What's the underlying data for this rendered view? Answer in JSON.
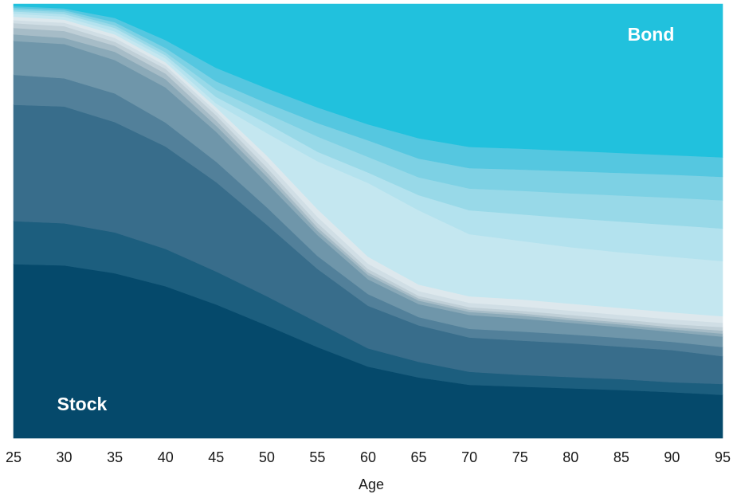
{
  "chart_data": {
    "type": "area",
    "stacked": true,
    "normalized": true,
    "title": "",
    "xlabel": "Age",
    "ylabel": "",
    "x": [
      25,
      30,
      35,
      40,
      45,
      50,
      55,
      60,
      65,
      70,
      75,
      80,
      85,
      90,
      95
    ],
    "xlim": [
      25,
      95
    ],
    "ylim": [
      0,
      1
    ],
    "grid": false,
    "legend": "none",
    "boundaries": [
      [
        0.401,
        0.398,
        0.38,
        0.35,
        0.308,
        0.26,
        0.21,
        0.165,
        0.14,
        0.123,
        0.119,
        0.115,
        0.111,
        0.106,
        0.1
      ],
      [
        0.5,
        0.495,
        0.474,
        0.436,
        0.384,
        0.327,
        0.267,
        0.207,
        0.176,
        0.153,
        0.146,
        0.141,
        0.136,
        0.129,
        0.125
      ],
      [
        0.768,
        0.764,
        0.728,
        0.672,
        0.59,
        0.492,
        0.39,
        0.305,
        0.26,
        0.232,
        0.225,
        0.219,
        0.211,
        0.203,
        0.189
      ],
      [
        0.837,
        0.829,
        0.794,
        0.727,
        0.637,
        0.532,
        0.42,
        0.332,
        0.279,
        0.252,
        0.246,
        0.239,
        0.231,
        0.222,
        0.21
      ],
      [
        0.915,
        0.908,
        0.871,
        0.808,
        0.706,
        0.588,
        0.468,
        0.366,
        0.309,
        0.284,
        0.276,
        0.266,
        0.256,
        0.245,
        0.234
      ],
      [
        0.93,
        0.922,
        0.89,
        0.827,
        0.72,
        0.603,
        0.478,
        0.376,
        0.317,
        0.291,
        0.283,
        0.272,
        0.262,
        0.251,
        0.241
      ],
      [
        0.945,
        0.938,
        0.904,
        0.84,
        0.732,
        0.613,
        0.486,
        0.382,
        0.322,
        0.296,
        0.288,
        0.277,
        0.267,
        0.256,
        0.248
      ],
      [
        0.956,
        0.949,
        0.913,
        0.851,
        0.744,
        0.624,
        0.496,
        0.39,
        0.328,
        0.302,
        0.294,
        0.284,
        0.274,
        0.263,
        0.256
      ],
      [
        0.963,
        0.957,
        0.922,
        0.859,
        0.753,
        0.637,
        0.51,
        0.402,
        0.339,
        0.312,
        0.304,
        0.294,
        0.284,
        0.274,
        0.266
      ],
      [
        0.971,
        0.964,
        0.93,
        0.866,
        0.762,
        0.651,
        0.528,
        0.418,
        0.354,
        0.327,
        0.32,
        0.31,
        0.3,
        0.29,
        0.281
      ],
      [
        0.978,
        0.971,
        0.937,
        0.875,
        0.771,
        0.703,
        0.638,
        0.588,
        0.525,
        0.47,
        0.455,
        0.44,
        0.428,
        0.418,
        0.408
      ],
      [
        0.983,
        0.977,
        0.945,
        0.882,
        0.786,
        0.725,
        0.66,
        0.612,
        0.56,
        0.525,
        0.516,
        0.507,
        0.499,
        0.491,
        0.483
      ],
      [
        0.987,
        0.982,
        0.951,
        0.889,
        0.803,
        0.748,
        0.695,
        0.648,
        0.601,
        0.575,
        0.57,
        0.564,
        0.559,
        0.554,
        0.548
      ],
      [
        0.991,
        0.986,
        0.958,
        0.899,
        0.822,
        0.772,
        0.726,
        0.686,
        0.644,
        0.622,
        0.619,
        0.615,
        0.611,
        0.607,
        0.602
      ],
      [
        0.995,
        0.99,
        0.968,
        0.917,
        0.853,
        0.806,
        0.762,
        0.723,
        0.691,
        0.671,
        0.667,
        0.662,
        0.657,
        0.652,
        0.647
      ],
      [
        1.0,
        1.0,
        1.0,
        1.0,
        1.0,
        1.0,
        1.0,
        1.0,
        1.0,
        1.0,
        1.0,
        1.0,
        1.0,
        1.0,
        1.0
      ]
    ],
    "colors": [
      "#05496b",
      "#1c5e7e",
      "#386d8b",
      "#52809a",
      "#6f96aa",
      "#8aa9b8",
      "#a6bcc7",
      "#bfcfd7",
      "#d0dee5",
      "#dde8ed",
      "#c4e7f0",
      "#b3e2ee",
      "#98d9e8",
      "#7dd1e4",
      "#55c7e0",
      "#21c1dd"
    ],
    "annotations": [
      {
        "text": "Stock"
      },
      {
        "text": "Bond"
      }
    ]
  }
}
